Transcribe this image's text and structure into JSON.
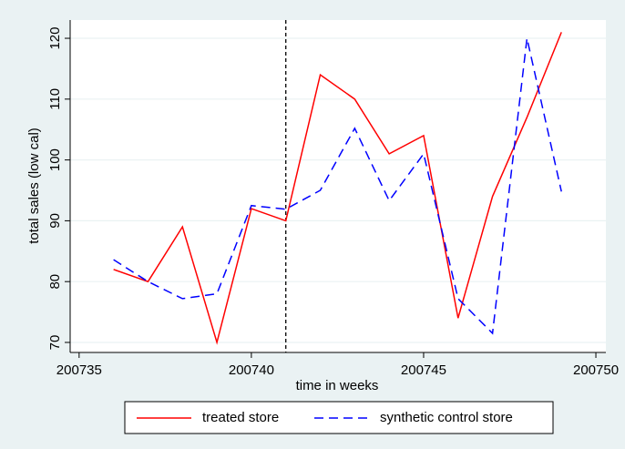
{
  "chart_data": {
    "type": "line",
    "x_label": "time in weeks",
    "y_label": "total sales (low cal)",
    "x": [
      200736,
      200737,
      200738,
      200739,
      200740,
      200741,
      200742,
      200743,
      200744,
      200745,
      200746,
      200747,
      200748,
      200749
    ],
    "series": [
      {
        "name": "treated store",
        "color": "#ff0000",
        "dash": "solid",
        "values": [
          82,
          80,
          89,
          70,
          92,
          90,
          114,
          110,
          101,
          104,
          74,
          94,
          107,
          121
        ]
      },
      {
        "name": "synthetic control store",
        "color": "#0000ff",
        "dash": "dashed",
        "values": [
          83.6,
          80,
          77.2,
          78,
          92.5,
          91.9,
          95,
          105.2,
          93.3,
          101,
          77.2,
          71.5,
          120,
          94.8
        ]
      }
    ],
    "vline": 200741,
    "xlim": [
      200734.74,
      200750.29
    ],
    "xticks": [
      200735,
      200740,
      200745,
      200750
    ],
    "ylim": [
      68.35,
      123
    ],
    "yticks": [
      70,
      80,
      90,
      100,
      110,
      120
    ],
    "grid": true
  }
}
